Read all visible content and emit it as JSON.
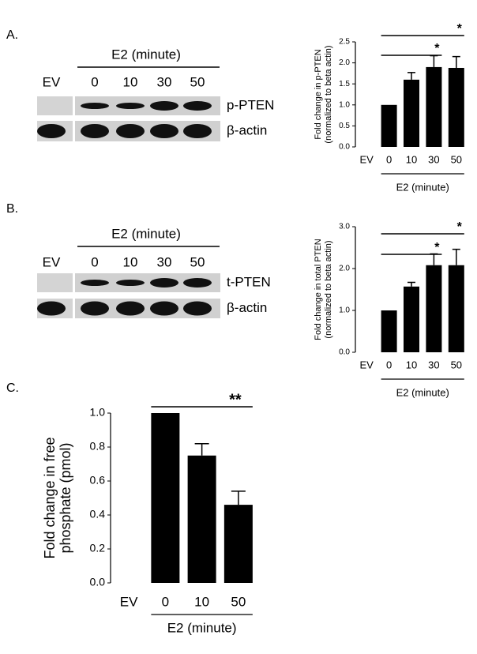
{
  "panels": [
    "A.",
    "B.",
    "C."
  ],
  "blots": [
    {
      "group": "E2 (minute)",
      "lanes": [
        "EV",
        "0",
        "10",
        "30",
        "50"
      ],
      "rows": [
        "p-PTEN",
        "β-actin"
      ]
    },
    {
      "group": "E2 (minute)",
      "lanes": [
        "EV",
        "0",
        "10",
        "30",
        "50"
      ],
      "rows": [
        "t-PTEN",
        "β-actin"
      ]
    }
  ],
  "chart_data": [
    {
      "type": "bar",
      "ylabel": [
        "Fold change in p-PTEN",
        "(normalized to beta actin)"
      ],
      "categories": [
        "EV",
        "0",
        "10",
        "30",
        "50"
      ],
      "values": [
        null,
        1.0,
        1.6,
        1.9,
        1.88
      ],
      "errors": [
        null,
        null,
        0.17,
        0.27,
        0.27
      ],
      "color": "#000000",
      "group_label": "E2 (minute)",
      "ylim": [
        0,
        2.5
      ],
      "yticks": [
        {
          "value": 0,
          "label": "0.0"
        },
        0.5,
        {
          "value": 1,
          "label": "1.0"
        },
        1.5,
        {
          "value": 2,
          "label": "2.0"
        },
        2.5
      ],
      "annotations": [
        {
          "text": "*",
          "from": "0",
          "to": "50"
        },
        {
          "text": "*",
          "from": "0",
          "to": "30"
        }
      ]
    },
    {
      "type": "bar",
      "ylabel": [
        "Fold change in total PTEN",
        "(normalized to beta actin)"
      ],
      "categories": [
        "EV",
        "0",
        "10",
        "30",
        "50"
      ],
      "values": [
        null,
        1.0,
        1.57,
        2.08,
        2.08
      ],
      "errors": [
        null,
        null,
        0.1,
        0.27,
        0.38
      ],
      "color": "#000000",
      "group_label": "E2 (minute)",
      "ylim": [
        0,
        3
      ],
      "yticks": [
        {
          "value": 0,
          "label": "0.0"
        },
        {
          "value": 1,
          "label": "1.0"
        },
        {
          "value": 2,
          "label": "2.0"
        },
        {
          "value": 3,
          "label": "3.0"
        }
      ],
      "annotations": [
        {
          "text": "*",
          "from": "0",
          "to": "50"
        },
        {
          "text": "*",
          "from": "0",
          "to": "30"
        }
      ]
    },
    {
      "type": "bar",
      "ylabel": [
        "Fold change in free",
        "phosphate (pmol)"
      ],
      "categories": [
        "EV",
        "0",
        "10",
        "50"
      ],
      "values": [
        null,
        1.0,
        0.75,
        0.46
      ],
      "errors": [
        null,
        null,
        0.07,
        0.08
      ],
      "color": "#000000",
      "group_label": "E2 (minute)",
      "ylim": [
        0,
        1
      ],
      "yticks": [
        {
          "value": 0,
          "label": "0.0"
        },
        0.2,
        0.4,
        0.6,
        0.8,
        {
          "value": 1,
          "label": "1.0"
        }
      ],
      "annotations": [
        {
          "text": "**",
          "from": "0",
          "to": "50"
        }
      ]
    }
  ]
}
